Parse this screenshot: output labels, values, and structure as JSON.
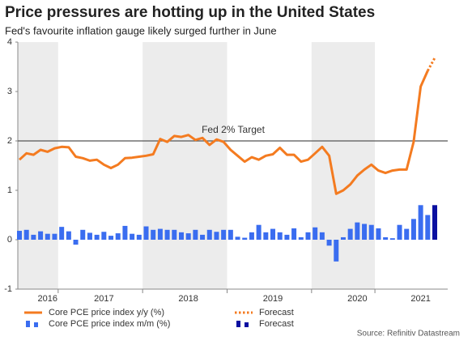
{
  "chart_data": {
    "type": "combo",
    "title": "Price pressures are hotting up in the United States",
    "subtitle": "Fed's favourite inflation gauge likely surged further in June",
    "source": "Source: Refinitiv Datastream",
    "categories": [
      null,
      null,
      null,
      null,
      "2016",
      null,
      null,
      null,
      null,
      null,
      null,
      null,
      "2017",
      null,
      null,
      null,
      null,
      null,
      null,
      null,
      null,
      null,
      null,
      null,
      "2018",
      null,
      null,
      null,
      null,
      null,
      null,
      null,
      null,
      null,
      null,
      null,
      "2019",
      null,
      null,
      null,
      null,
      null,
      null,
      null,
      null,
      null,
      null,
      null,
      "2020",
      null,
      null,
      null,
      null,
      null,
      null,
      null,
      null,
      "2021",
      null,
      null
    ],
    "series": [
      {
        "name": "Core PCE price index y/y (%)",
        "type": "line",
        "style": "solid",
        "color": "#f47b20",
        "values": [
          1.62,
          1.75,
          1.72,
          1.82,
          1.78,
          1.85,
          1.88,
          1.87,
          1.68,
          1.65,
          1.6,
          1.62,
          1.52,
          1.45,
          1.52,
          1.65,
          1.66,
          1.68,
          1.7,
          1.73,
          2.04,
          1.98,
          2.1,
          2.08,
          2.12,
          2.02,
          2.06,
          1.92,
          2.03,
          1.98,
          1.82,
          1.7,
          1.58,
          1.67,
          1.62,
          1.7,
          1.73,
          1.86,
          1.72,
          1.72,
          1.58,
          1.62,
          1.75,
          1.88,
          1.7,
          0.93,
          1.0,
          1.12,
          1.3,
          1.42,
          1.52,
          1.4,
          1.35,
          1.4,
          1.42,
          1.42,
          1.98,
          3.1,
          3.42,
          null
        ]
      },
      {
        "name": "Forecast",
        "type": "line",
        "style": "dotted",
        "color": "#f47b20",
        "values": [
          null,
          null,
          null,
          null,
          null,
          null,
          null,
          null,
          null,
          null,
          null,
          null,
          null,
          null,
          null,
          null,
          null,
          null,
          null,
          null,
          null,
          null,
          null,
          null,
          null,
          null,
          null,
          null,
          null,
          null,
          null,
          null,
          null,
          null,
          null,
          null,
          null,
          null,
          null,
          null,
          null,
          null,
          null,
          null,
          null,
          null,
          null,
          null,
          null,
          null,
          null,
          null,
          null,
          null,
          null,
          null,
          null,
          null,
          3.42,
          3.68
        ]
      },
      {
        "name": "Core PCE price index m/m (%)",
        "type": "bar",
        "color": "#3a6df0",
        "values": [
          0.18,
          0.2,
          0.1,
          0.17,
          0.12,
          0.12,
          0.26,
          0.17,
          -0.1,
          0.2,
          0.14,
          0.1,
          0.16,
          0.08,
          0.13,
          0.28,
          0.12,
          0.1,
          0.27,
          0.2,
          0.22,
          0.2,
          0.2,
          0.15,
          0.13,
          0.2,
          0.1,
          0.2,
          0.16,
          0.2,
          0.2,
          0.06,
          0.04,
          0.15,
          0.3,
          0.15,
          0.22,
          0.15,
          0.1,
          0.23,
          0.05,
          0.15,
          0.25,
          0.15,
          -0.12,
          -0.44,
          0.05,
          0.22,
          0.35,
          0.32,
          0.3,
          0.23,
          0.05,
          0.03,
          0.3,
          0.22,
          0.42,
          0.7,
          0.5,
          null
        ]
      },
      {
        "name": "Forecast",
        "type": "bar",
        "color": "#0a0fa0",
        "values": [
          null,
          null,
          null,
          null,
          null,
          null,
          null,
          null,
          null,
          null,
          null,
          null,
          null,
          null,
          null,
          null,
          null,
          null,
          null,
          null,
          null,
          null,
          null,
          null,
          null,
          null,
          null,
          null,
          null,
          null,
          null,
          null,
          null,
          null,
          null,
          null,
          null,
          null,
          null,
          null,
          null,
          null,
          null,
          null,
          null,
          null,
          null,
          null,
          null,
          null,
          null,
          null,
          null,
          null,
          null,
          null,
          null,
          null,
          null,
          0.7
        ]
      }
    ],
    "target": {
      "value": 2,
      "label": "Fed 2% Target"
    },
    "ylim": [
      -1,
      4
    ],
    "yticks": [
      -1,
      0,
      1,
      2,
      3,
      4
    ]
  }
}
